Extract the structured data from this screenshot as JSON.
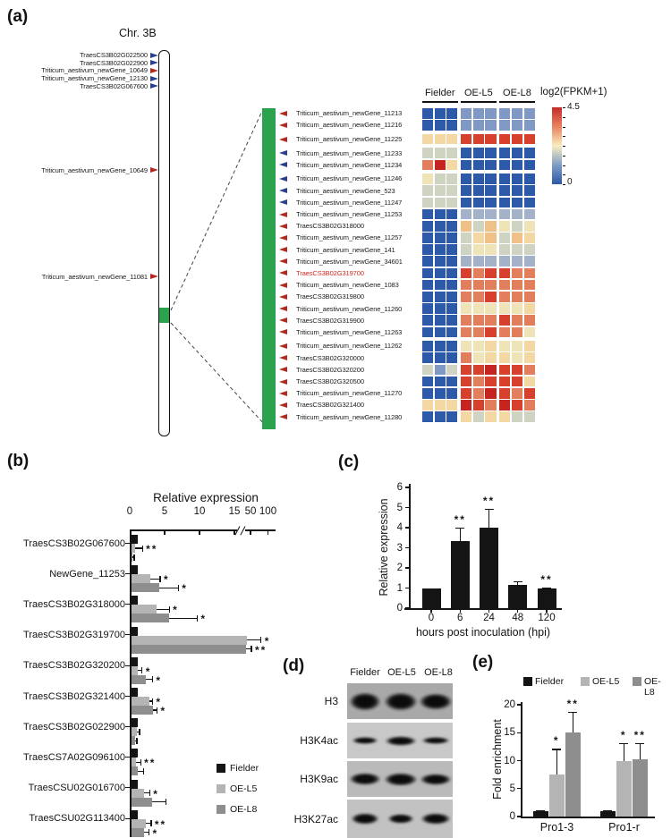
{
  "panels": {
    "a": {
      "label": "(a)",
      "chr_title": "Chr. 3B",
      "top_genes": [
        {
          "name": "TraesCS3B02G022500",
          "arrow": "blue"
        },
        {
          "name": "TraesCS3B02G022900",
          "arrow": "blue"
        },
        {
          "name": "Triticum_aestivum_newGene_10649",
          "arrow": "red"
        },
        {
          "name": "Triticum_aestivum_newGene_12130",
          "arrow": "blue"
        },
        {
          "name": "TraesCS3B02G067600",
          "arrow": "blue"
        }
      ],
      "mid_genes": [
        {
          "name": "Triticum_aestivum_newGene_10649",
          "arrow": "red"
        },
        {
          "name": "Triticum_aestivum_newGene_11081",
          "arrow": "red"
        }
      ],
      "colors": {
        "green_region": "#2ba24e",
        "arrow_red": "#b3291f",
        "arrow_blue": "#27418c",
        "highlight_text": "#cf2a20"
      }
    },
    "b": {
      "label": "(b)",
      "legend": [
        {
          "label": "Fielder",
          "color": "#141414"
        },
        {
          "label": "OE-L5",
          "color": "#b4b4b4"
        },
        {
          "label": "OE-L8",
          "color": "#8e8e8e"
        }
      ]
    },
    "c": {
      "label": "(c)"
    },
    "d": {
      "label": "(d)",
      "col_headers": [
        "Fielder",
        "OE-L5",
        "OE-L8"
      ],
      "row_labels": [
        "H3",
        "H3K4ac",
        "H3K9ac",
        "H3K27ac"
      ]
    },
    "e": {
      "label": "(e)",
      "legend": [
        {
          "label": "Fielder",
          "color": "#141414"
        },
        {
          "label": "OE-L5",
          "color": "#b4b4b4"
        },
        {
          "label": "OE-L8",
          "color": "#8e8e8e"
        }
      ]
    }
  },
  "chart_data": [
    {
      "type": "heatmap",
      "panel": "a",
      "legend_title": "log2(FPKM+1)",
      "scale_max": "4.5",
      "scale_min": "0",
      "col_groups": [
        "Fielder",
        "OE-L5",
        "OE-L8"
      ],
      "reps_per_group": 3,
      "colorbar_stops": [
        "#c42a2b",
        "#e9825e",
        "#f8edc0",
        "#7f9cc6",
        "#2c59a6"
      ],
      "palette": {
        "DB": "#2d5aa8",
        "LB": "#8099c4",
        "BG": "#a3b2c8",
        "GY": "#cfd4c2",
        "PY": "#efe4b8",
        "TN": "#f3d8a3",
        "OR": "#efc189",
        "SA": "#e27e5c",
        "RD": "#d6402d",
        "DR": "#c52420"
      },
      "rows": [
        {
          "gene": "Triticum_aestivum_newGene_11213",
          "arrow": "red",
          "cells": [
            "DB",
            "DB",
            "DB",
            "LB",
            "LB",
            "LB",
            "LB",
            "LB",
            "LB"
          ]
        },
        {
          "gene": "Triticum_aestivum_newGene_11216",
          "arrow": "red",
          "cells": [
            "DB",
            "DB",
            "DB",
            "LB",
            "LB",
            "LB",
            "LB",
            "LB",
            "LB"
          ]
        },
        {
          "gene": "Triticum_aestivum_newGene_11225",
          "arrow": "red",
          "gap": true,
          "cells": [
            "TN",
            "TN",
            "TN",
            "RD",
            "RD",
            "RD",
            "RD",
            "RD",
            "RD"
          ]
        },
        {
          "gene": "Triticum_aestivum_newGene_11233",
          "arrow": "blue",
          "gap": true,
          "cells": [
            "GY",
            "GY",
            "GY",
            "DB",
            "DB",
            "DB",
            "DB",
            "DB",
            "DB"
          ]
        },
        {
          "gene": "Triticum_aestivum_newGene_11234",
          "arrow": "blue",
          "cells": [
            "SA",
            "DR",
            "TN",
            "DB",
            "DB",
            "DB",
            "DB",
            "DB",
            "DB"
          ]
        },
        {
          "gene": "Triticum_aestivum_newGene_11246",
          "arrow": "blue",
          "gap": true,
          "cells": [
            "PY",
            "GY",
            "GY",
            "DB",
            "DB",
            "DB",
            "DB",
            "DB",
            "DB"
          ]
        },
        {
          "gene": "Triticum_aestivum_newGene_523",
          "arrow": "blue",
          "cells": [
            "GY",
            "GY",
            "GY",
            "DB",
            "DB",
            "DB",
            "DB",
            "DB",
            "DB"
          ]
        },
        {
          "gene": "Triticum_aestivum_newGene_11247",
          "arrow": "blue",
          "cells": [
            "GY",
            "GY",
            "GY",
            "DB",
            "DB",
            "DB",
            "DB",
            "DB",
            "DB"
          ]
        },
        {
          "gene": "Triticum_aestivum_newGene_11253",
          "arrow": "red",
          "cells": [
            "DB",
            "DB",
            "DB",
            "BG",
            "BG",
            "BG",
            "BG",
            "BG",
            "BG"
          ]
        },
        {
          "gene": "TraesCS3B02G318000",
          "arrow": "red",
          "cells": [
            "DB",
            "DB",
            "DB",
            "OR",
            "GY",
            "OR",
            "PY",
            "GY",
            "PY"
          ]
        },
        {
          "gene": "Triticum_aestivum_newGene_11257",
          "arrow": "red",
          "cells": [
            "DB",
            "DB",
            "DB",
            "GY",
            "TN",
            "OR",
            "GY",
            "OR",
            "TN"
          ]
        },
        {
          "gene": "Triticum_aestivum_newGene_141",
          "arrow": "red",
          "cells": [
            "DB",
            "DB",
            "DB",
            "GY",
            "PY",
            "PY",
            "GY",
            "GY",
            "GY"
          ]
        },
        {
          "gene": "Triticum_aestivum_newGene_34601",
          "arrow": "red",
          "cells": [
            "DB",
            "DB",
            "DB",
            "BG",
            "BG",
            "BG",
            "BG",
            "BG",
            "BG"
          ]
        },
        {
          "gene": "TraesCS3B02G319700",
          "arrow": "red",
          "highlight": true,
          "cells": [
            "DB",
            "DB",
            "DB",
            "RD",
            "SA",
            "RD",
            "RD",
            "SA",
            "SA"
          ]
        },
        {
          "gene": "Triticum_aestivum_newGene_1083",
          "arrow": "red",
          "cells": [
            "DB",
            "DB",
            "DB",
            "SA",
            "SA",
            "SA",
            "SA",
            "SA",
            "SA"
          ]
        },
        {
          "gene": "TraesCS3B02G319800",
          "arrow": "red",
          "cells": [
            "DB",
            "DB",
            "DB",
            "SA",
            "SA",
            "RD",
            "SA",
            "SA",
            "SA"
          ]
        },
        {
          "gene": "Triticum_aestivum_newGene_11260",
          "arrow": "red",
          "cells": [
            "DB",
            "DB",
            "DB",
            "PY",
            "PY",
            "PY",
            "PY",
            "PY",
            "TN"
          ]
        },
        {
          "gene": "TraesCS3B02G319900",
          "arrow": "red",
          "cells": [
            "DB",
            "DB",
            "DB",
            "SA",
            "SA",
            "SA",
            "RD",
            "SA",
            "SA"
          ]
        },
        {
          "gene": "Triticum_aestivum_newGene_11263",
          "arrow": "red",
          "cells": [
            "DB",
            "DB",
            "DB",
            "SA",
            "SA",
            "RD",
            "SA",
            "SA",
            "PY"
          ]
        },
        {
          "gene": "Triticum_aestivum_newGene_11262",
          "arrow": "red",
          "gap": true,
          "cells": [
            "DB",
            "DB",
            "DB",
            "PY",
            "PY",
            "TN",
            "PY",
            "PY",
            "TN"
          ]
        },
        {
          "gene": "TraesCS3B02G320000",
          "arrow": "red",
          "cells": [
            "DB",
            "DB",
            "DB",
            "SA",
            "PY",
            "TN",
            "TN",
            "PY",
            "TN"
          ]
        },
        {
          "gene": "TraesCS3B02G320200",
          "arrow": "red",
          "cells": [
            "GY",
            "LB",
            "GY",
            "RD",
            "RD",
            "DR",
            "RD",
            "RD",
            "SA"
          ]
        },
        {
          "gene": "TraesCS3B02G320500",
          "arrow": "red",
          "cells": [
            "DB",
            "DB",
            "DB",
            "RD",
            "SA",
            "RD",
            "RD",
            "RD",
            "TN"
          ]
        },
        {
          "gene": "Triticum_aestivum_newGene_11270",
          "arrow": "red",
          "cells": [
            "DB",
            "DB",
            "DB",
            "RD",
            "SA",
            "DR",
            "RD",
            "SA",
            "RD"
          ]
        },
        {
          "gene": "TraesCS3B02G321400",
          "arrow": "red",
          "cells": [
            "TN",
            "TN",
            "TN",
            "DR",
            "RD",
            "SA",
            "DR",
            "RD",
            "SA"
          ]
        },
        {
          "gene": "Triticum_aestivum_newGene_11280",
          "arrow": "red",
          "cells": [
            "DB",
            "DB",
            "DB",
            "TN",
            "GY",
            "TN",
            "TN",
            "GY",
            "GY"
          ]
        }
      ]
    },
    {
      "type": "bar",
      "panel": "b",
      "orientation": "horizontal",
      "title": "Relative expression",
      "ticks": [
        "0",
        "5",
        "10",
        "15",
        "50",
        "100"
      ],
      "tick_values": [
        0,
        5,
        10,
        15,
        50,
        100
      ],
      "axis_break_after": 15,
      "series_names": [
        "Fielder",
        "OE-L5",
        "OE-L8"
      ],
      "series_colors": [
        "#141414",
        "#b4b4b4",
        "#8e8e8e"
      ],
      "groups": [
        {
          "gene": "TraesCS3B02G067600",
          "values": [
            1,
            0.55,
            0.25
          ],
          "errors": [
            0,
            1.0,
            0.12
          ],
          "sig": [
            "",
            "**",
            ""
          ]
        },
        {
          "gene": "NewGene_11253",
          "values": [
            1,
            2.8,
            4.1
          ],
          "errors": [
            0,
            1.3,
            2.6
          ],
          "sig": [
            "",
            "*",
            "*"
          ]
        },
        {
          "gene": "TraesCS3B02G318000",
          "values": [
            1,
            3.6,
            5.5
          ],
          "errors": [
            0,
            1.8,
            3.9
          ],
          "sig": [
            "",
            "*",
            "*"
          ]
        },
        {
          "gene": "TraesCS3B02G319700",
          "values": [
            1,
            40,
            38
          ],
          "errors": [
            0,
            35,
            10
          ],
          "sig": [
            "",
            "*",
            "**"
          ]
        },
        {
          "gene": "TraesCS3B02G320200",
          "values": [
            1,
            0.9,
            2.1
          ],
          "errors": [
            0,
            0.6,
            0.9
          ],
          "sig": [
            "",
            "*",
            "*"
          ]
        },
        {
          "gene": "TraesCS3B02G321400",
          "values": [
            1,
            2.6,
            3.2
          ],
          "errors": [
            0,
            0.4,
            0.45
          ],
          "sig": [
            "",
            "*",
            "*"
          ]
        },
        {
          "gene": "TraesCS3B02G022900",
          "values": [
            1,
            0.8,
            0.6
          ],
          "errors": [
            0,
            0.35,
            0.15
          ],
          "sig": [
            "",
            "",
            ""
          ]
        },
        {
          "gene": "TraesCS7A02G096100",
          "values": [
            1,
            0.7,
            1.0
          ],
          "errors": [
            0,
            0.6,
            0.7
          ],
          "sig": [
            "",
            "**",
            ""
          ]
        },
        {
          "gene": "TraesCSU02G016700",
          "values": [
            1,
            1.9,
            3.0
          ],
          "errors": [
            0,
            0.7,
            1.9
          ],
          "sig": [
            "",
            "*",
            ""
          ]
        },
        {
          "gene": "TraesCSU02G113400",
          "values": [
            1,
            2.1,
            1.9
          ],
          "errors": [
            0,
            0.7,
            0.6
          ],
          "sig": [
            "",
            "**",
            "*"
          ]
        }
      ]
    },
    {
      "type": "bar",
      "panel": "c",
      "ylabel": "Relative expression",
      "xlabel": "hours post inoculation (hpi)",
      "categories": [
        "0",
        "6",
        "24",
        "48",
        "120"
      ],
      "values": [
        1.0,
        3.35,
        4.0,
        1.15,
        0.97
      ],
      "errors": [
        0,
        0.65,
        0.95,
        0.18,
        0.05
      ],
      "sig": [
        "",
        "**",
        "**",
        "",
        "**"
      ],
      "yticks": [
        0,
        1,
        2,
        3,
        4,
        5,
        6
      ],
      "ylim": [
        0,
        6
      ],
      "bar_color": "#141414"
    },
    {
      "type": "bar",
      "panel": "e",
      "ylabel": "Fold enrichment",
      "categories": [
        "Pro1-3",
        "Pro1-r"
      ],
      "series": [
        {
          "name": "Fielder",
          "color": "#141414",
          "values": [
            1.0,
            1.0
          ],
          "errors": [
            0.15,
            0.15
          ],
          "sig": [
            "",
            ""
          ]
        },
        {
          "name": "OE-L5",
          "color": "#b4b4b4",
          "values": [
            7.6,
            10.0
          ],
          "errors": [
            4.5,
            3.2
          ],
          "sig": [
            "*",
            "*"
          ]
        },
        {
          "name": "OE-L8",
          "color": "#8e8e8e",
          "values": [
            15.0,
            10.3
          ],
          "errors": [
            3.8,
            2.9
          ],
          "sig": [
            "**",
            "**"
          ]
        }
      ],
      "yticks": [
        0,
        5,
        10,
        15,
        20
      ],
      "ylim": [
        0,
        20
      ]
    }
  ]
}
